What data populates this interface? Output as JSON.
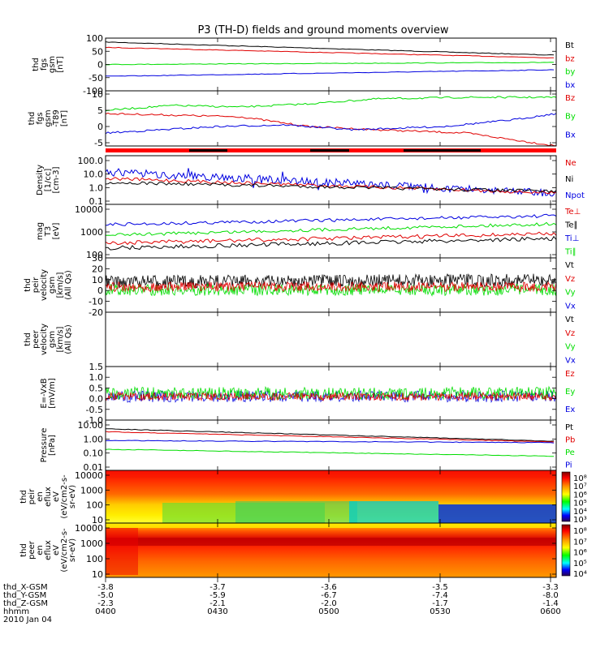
{
  "title": "P3 (TH-D) fields and ground moments overview",
  "date_label": "2010 Jan 04",
  "colors": {
    "black": "#000000",
    "red": "#e00000",
    "green": "#00dd00",
    "blue": "#0000e0",
    "bar_red": "#ff0000"
  },
  "ephemeris": {
    "row_labels": [
      "thd_X-GSM",
      "thd_Y-GSM",
      "thd_Z-GSM",
      "hhmm"
    ],
    "columns": [
      {
        "x": "-3.8",
        "y": "-5.0",
        "z": "-2.3",
        "t": "0400"
      },
      {
        "x": "-3.7",
        "y": "-5.9",
        "z": "-2.1",
        "t": "0430"
      },
      {
        "x": "-3.6",
        "y": "-6.7",
        "z": "-2.0",
        "t": "0500"
      },
      {
        "x": "-3.5",
        "y": "-7.4",
        "z": "-1.7",
        "t": "0530"
      },
      {
        "x": "-3.3",
        "y": "-8.0",
        "z": "-1.4",
        "t": "0600"
      }
    ]
  },
  "chart_data": [
    {
      "type": "line",
      "panel": "fgs_gsm",
      "ylabel": [
        "thd",
        "fgs",
        "gsm",
        "[nT]"
      ],
      "yticks": [
        "100",
        "50",
        "0",
        "-50",
        "-100"
      ],
      "ylim": [
        -100,
        100
      ],
      "series": [
        {
          "name": "Bt",
          "color": "#000000",
          "start": 85,
          "end": 35
        },
        {
          "name": "bz",
          "color": "#e00000",
          "start": 65,
          "end": 25
        },
        {
          "name": "by",
          "color": "#00dd00",
          "start": 0,
          "end": 8
        },
        {
          "name": "bx",
          "color": "#0000e0",
          "start": -45,
          "end": -20
        }
      ]
    },
    {
      "type": "line",
      "panel": "fgs_gsm_t89",
      "ylabel": [
        "thd",
        "fgs",
        "gsm",
        "-T89",
        "[nT]"
      ],
      "yticks": [
        "10",
        "5",
        "0",
        "-5"
      ],
      "ylim": [
        -6,
        11
      ],
      "series": [
        {
          "name": "Bz",
          "color": "#e00000",
          "start": 4,
          "end": -6
        },
        {
          "name": "By",
          "color": "#00dd00",
          "start": 5,
          "end": 9
        },
        {
          "name": "Bx",
          "color": "#0000e0",
          "start": -2,
          "end": 4
        }
      ]
    },
    {
      "type": "line",
      "panel": "density",
      "ylabel": [
        "Density",
        "[1/cc]",
        "[cm-3]"
      ],
      "yticks": [
        "100.0",
        "10.0",
        "1.0",
        "0.1"
      ],
      "ylim": [
        0.1,
        100
      ],
      "series": [
        {
          "name": "Ne",
          "color": "#e00000"
        },
        {
          "name": "Ni",
          "color": "#000000"
        },
        {
          "name": "Npot",
          "color": "#0000e0"
        }
      ]
    },
    {
      "type": "line",
      "panel": "temperature",
      "ylabel": [
        "mag",
        "T3",
        "[eV]"
      ],
      "yticks": [
        "10000",
        "1000",
        "100"
      ],
      "ylim": [
        100,
        10000
      ],
      "series": [
        {
          "name": "Te⊥",
          "color": "#e00000"
        },
        {
          "name": "Te∥",
          "color": "#000000"
        },
        {
          "name": "Ti⊥",
          "color": "#0000e0"
        },
        {
          "name": "Ti∥",
          "color": "#00dd00"
        }
      ]
    },
    {
      "type": "line",
      "panel": "peir_velocity",
      "ylabel": [
        "thd",
        "peir",
        "velocity",
        "gsm",
        "[km/s]",
        "(All Qs)"
      ],
      "yticks": [
        "30",
        "20",
        "10",
        "0",
        "-10",
        "-20"
      ],
      "ylim": [
        -20,
        30
      ],
      "series": [
        {
          "name": "Vt",
          "color": "#000000"
        },
        {
          "name": "Vz",
          "color": "#e00000"
        },
        {
          "name": "Vy",
          "color": "#00dd00"
        },
        {
          "name": "Vx",
          "color": "#0000e0"
        }
      ]
    },
    {
      "type": "line",
      "panel": "peer_velocity",
      "ylabel": [
        "thd",
        "peer",
        "velocity",
        "gsm",
        "[km/s]",
        "(All Qs)"
      ],
      "yticks": [],
      "series": [
        {
          "name": "Vt",
          "color": "#000000"
        },
        {
          "name": "Vz",
          "color": "#e00000"
        },
        {
          "name": "Vy",
          "color": "#00dd00"
        },
        {
          "name": "Vx",
          "color": "#0000e0"
        }
      ]
    },
    {
      "type": "line",
      "panel": "e_field",
      "ylabel": [
        "E=-VxB",
        "[mV/m]"
      ],
      "yticks": [
        "1.5",
        "1.0",
        "0.5",
        "0.0",
        "-0.5",
        "-1.0"
      ],
      "ylim": [
        -1.0,
        1.5
      ],
      "series": [
        {
          "name": "Ez",
          "color": "#e00000"
        },
        {
          "name": "Ey",
          "color": "#00dd00"
        },
        {
          "name": "Ex",
          "color": "#0000e0"
        }
      ]
    },
    {
      "type": "line",
      "panel": "pressure",
      "ylabel": [
        "Pressure",
        "[nPa]"
      ],
      "yticks": [
        "10.00",
        "1.00",
        "0.10",
        "0.01"
      ],
      "ylim": [
        0.01,
        10
      ],
      "series": [
        {
          "name": "Pt",
          "color": "#000000",
          "start": 3.0,
          "end": 0.55
        },
        {
          "name": "Pb",
          "color": "#e00000",
          "start": 2.0,
          "end": 0.5
        },
        {
          "name": "Pe",
          "color": "#00dd00",
          "start": 0.18,
          "end": 0.07
        },
        {
          "name": "Pi",
          "color": "#0000e0",
          "start": 0.6,
          "end": 0.45
        }
      ]
    },
    {
      "type": "heatmap",
      "panel": "peir_en_eflux",
      "ylabel": [
        "thd",
        "peir",
        "en",
        "eflux",
        "eV",
        "(eV/cm2-s-",
        "sr-eV)"
      ],
      "yticks": [
        "10000",
        "1000",
        "100",
        "10"
      ],
      "colorbar": [
        "10⁸",
        "10⁷",
        "10⁶",
        "10⁵",
        "10⁴",
        "10³"
      ]
    },
    {
      "type": "heatmap",
      "panel": "peer_en_eflux",
      "ylabel": [
        "thd",
        "peer",
        "en",
        "eflux",
        "eV",
        "(eV/cm2-s-",
        "sr-eV)"
      ],
      "yticks": [
        "10000",
        "1000",
        "100",
        "10"
      ],
      "colorbar": [
        "10⁸",
        "10⁷",
        "10⁶",
        "10⁵",
        "10⁴"
      ]
    }
  ]
}
